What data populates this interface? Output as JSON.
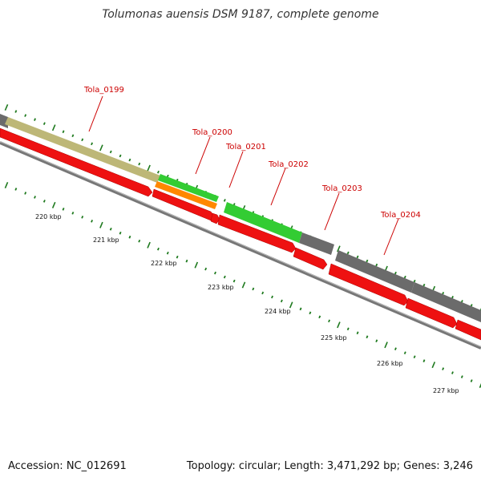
{
  "title": "Tolumonas auensis DSM 9187, complete genome",
  "accession": "Accession: NC_012691",
  "topology": "Topology: circular; Length: 3,471,292 bp; Genes: 3,246",
  "colors": {
    "gene_label": "#cc0000",
    "red": "#ee1111",
    "green": "#33cc33",
    "orange": "#ff8800",
    "olive": "#bdb777",
    "gray": "#6b6b6b",
    "tick": "#1f7a1f",
    "backbone": "#888888"
  },
  "gene_labels": [
    "Tola_0199",
    "Tola_0200",
    "Tola_0201",
    "Tola_0202",
    "Tola_0203",
    "Tola_0204"
  ],
  "kbp_labels": [
    "220 kbp",
    "221 kbp",
    "222 kbp",
    "223 kbp",
    "224 kbp",
    "225 kbp",
    "226 kbp",
    "227 kbp"
  ]
}
